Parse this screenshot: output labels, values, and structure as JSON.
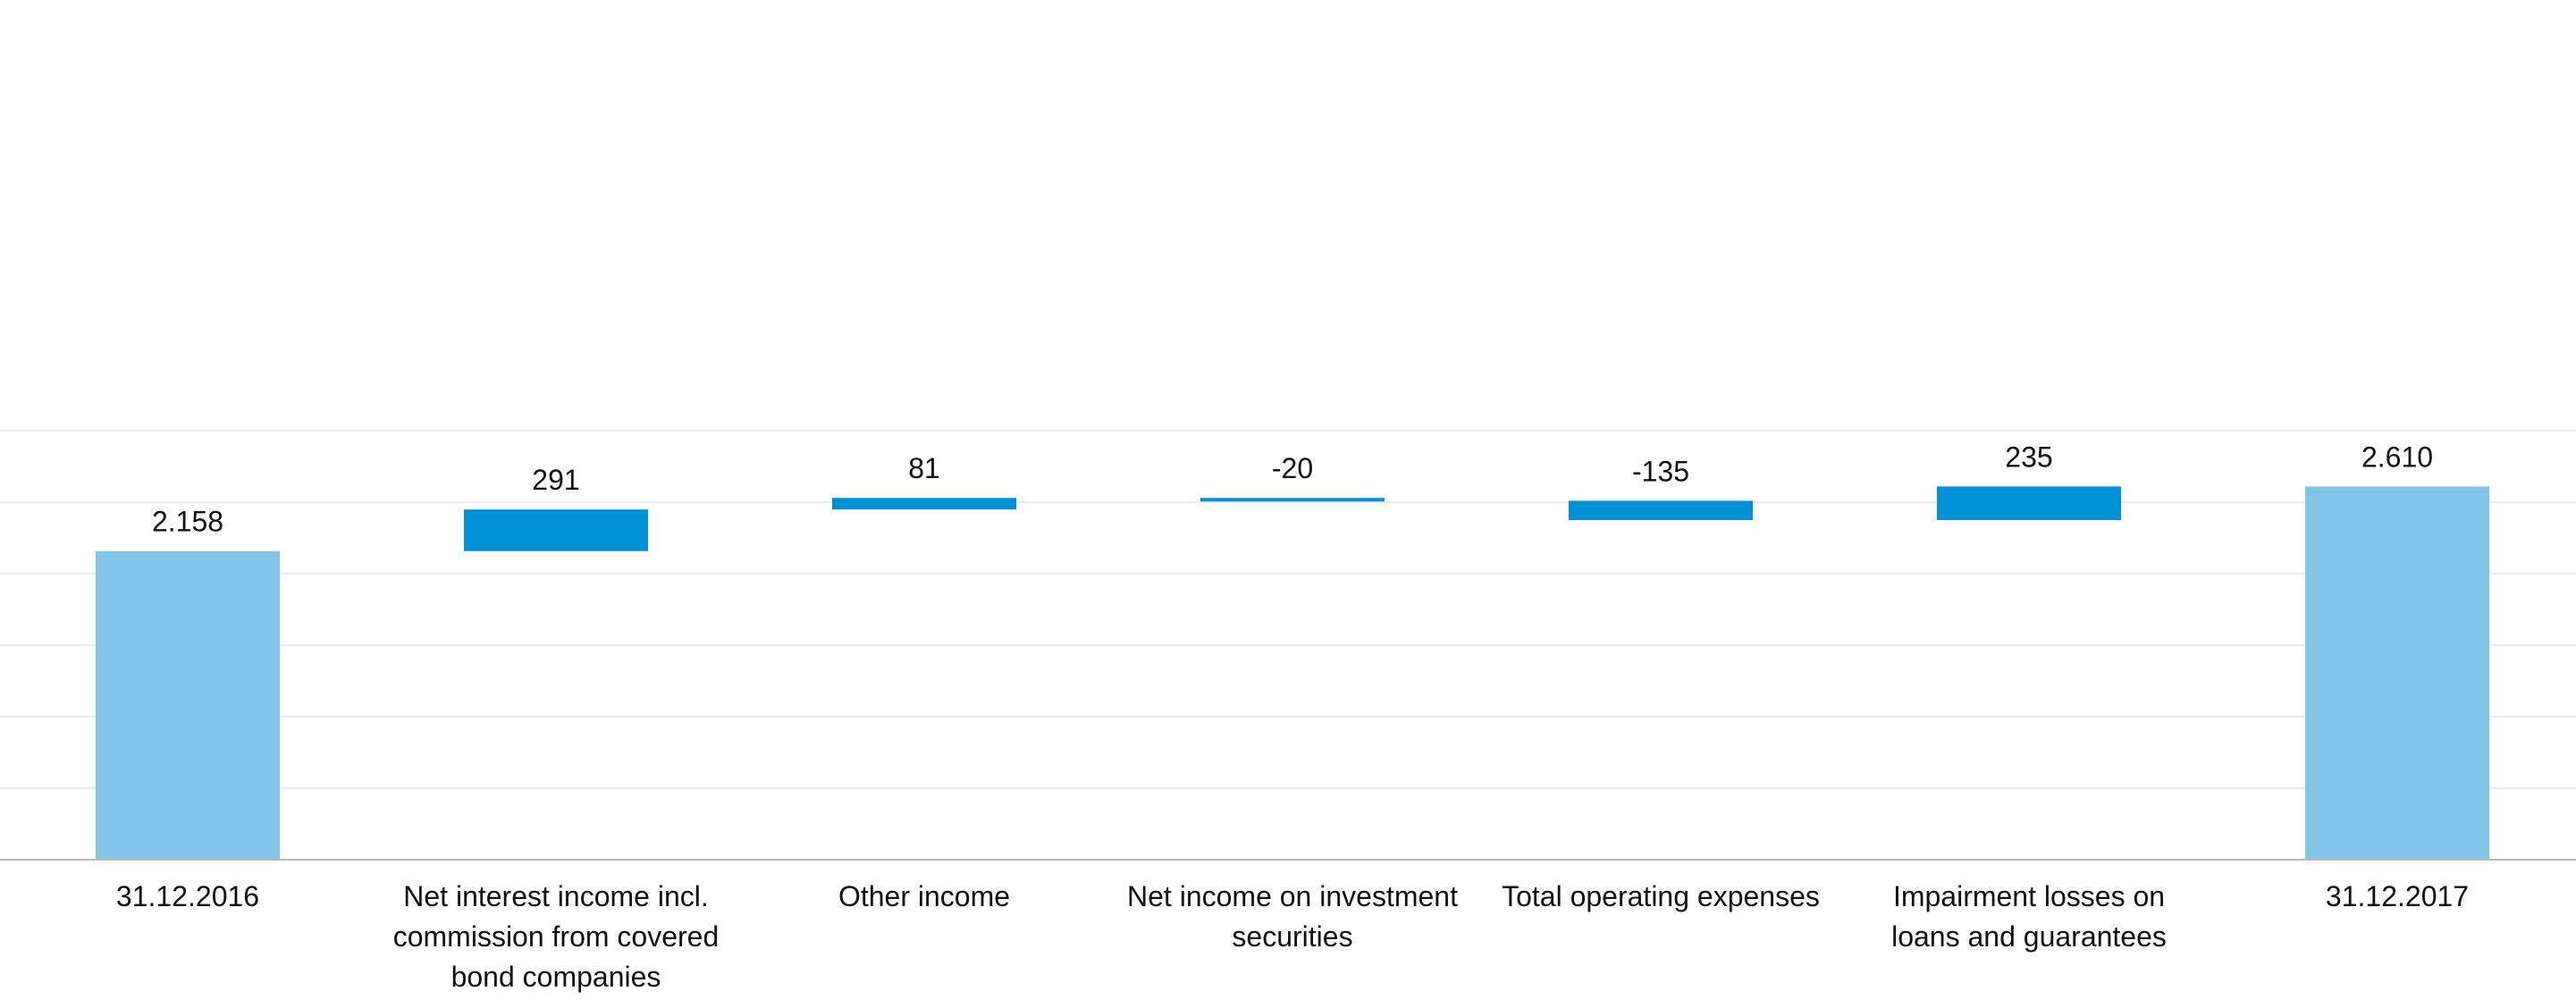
{
  "chart_data": {
    "type": "bar",
    "subtype": "waterfall",
    "title": "",
    "xlabel": "",
    "ylabel": "",
    "ylim": [
      0,
      3000
    ],
    "grid": true,
    "legend": "none",
    "categories": [
      [
        "31.12.2016"
      ],
      [
        "Net interest income incl.",
        "commission from covered",
        "bond companies"
      ],
      [
        "Other income"
      ],
      [
        "Net income on investment",
        "securities"
      ],
      [
        "Total operating expenses"
      ],
      [
        "Impairment losses on",
        "loans and guarantees"
      ],
      [
        "31.12.2017"
      ]
    ],
    "values": [
      2158,
      291,
      81,
      -20,
      -135,
      235,
      2610
    ],
    "value_labels": [
      "2.158",
      "291",
      "81",
      "-20",
      "-135",
      "235",
      "2.610"
    ],
    "bar_roles": [
      "total",
      "change",
      "change",
      "change",
      "change",
      "change",
      "total"
    ],
    "colors": {
      "total": "#82c5e7",
      "change": "#0090d6",
      "grid": "#e3e3e3",
      "axis": "#b8b8b8"
    }
  }
}
